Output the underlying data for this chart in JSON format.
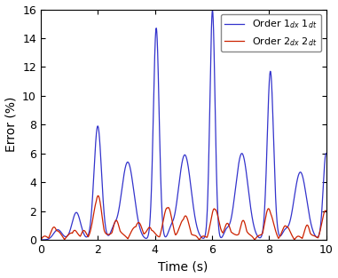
{
  "title": "",
  "xlabel": "Time (s)",
  "ylabel": "Error (%)",
  "xlim": [
    0,
    10
  ],
  "ylim": [
    0,
    16
  ],
  "yticks": [
    0,
    2,
    4,
    6,
    8,
    10,
    12,
    14,
    16
  ],
  "xticks": [
    0,
    2,
    4,
    6,
    8,
    10
  ],
  "blue_color": "#3333cc",
  "red_color": "#cc2200",
  "legend_labels": [
    "Order 1$_{dx}$ 1$_{dt}$",
    "Order 2$_{dx}$ 2$_{dt}$"
  ],
  "background_color": "#ffffff",
  "figsize": [
    3.81,
    3.13
  ],
  "dpi": 100
}
